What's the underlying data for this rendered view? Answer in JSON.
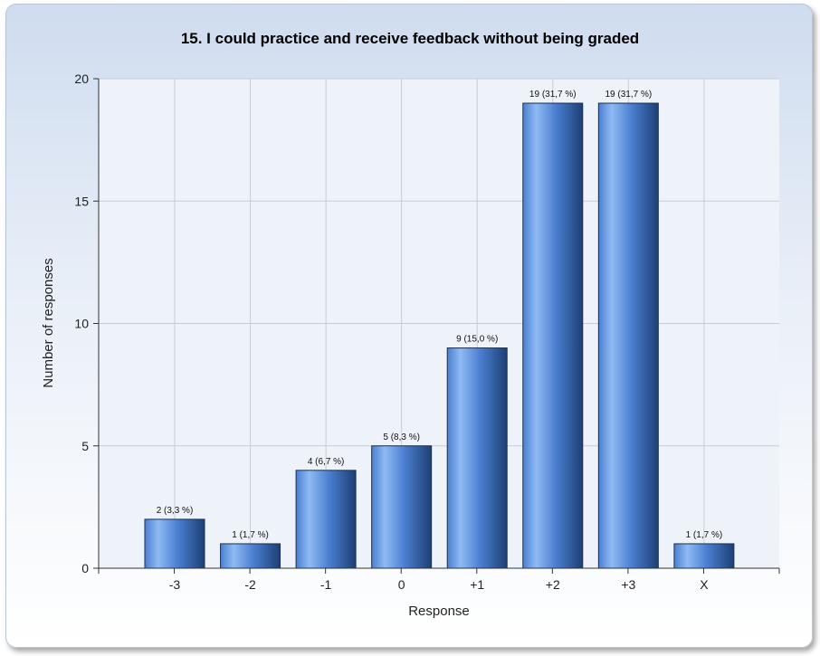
{
  "chart_data": {
    "type": "bar",
    "title": "15. I could practice and receive feedback without being graded",
    "xlabel": "Response",
    "ylabel": "Number of responses",
    "categories": [
      "-3",
      "-2",
      "-1",
      "0",
      "+1",
      "+2",
      "+3",
      "X"
    ],
    "values": [
      2,
      1,
      4,
      5,
      9,
      19,
      19,
      1
    ],
    "data_labels": [
      "2 (3,3 %)",
      "1 (1,7 %)",
      "4 (6,7 %)",
      "5 (8,3 %)",
      "9 (15,0 %)",
      "19 (31,7 %)",
      "19 (31,7 %)",
      "1 (1,7 %)"
    ],
    "ylim": [
      0,
      20
    ],
    "yticks": [
      0,
      5,
      10,
      15,
      20
    ],
    "grid": true,
    "bar_color_light": "#8fbaf3",
    "bar_color_mid": "#4a7fd0",
    "bar_color_dark": "#1d3f74"
  }
}
